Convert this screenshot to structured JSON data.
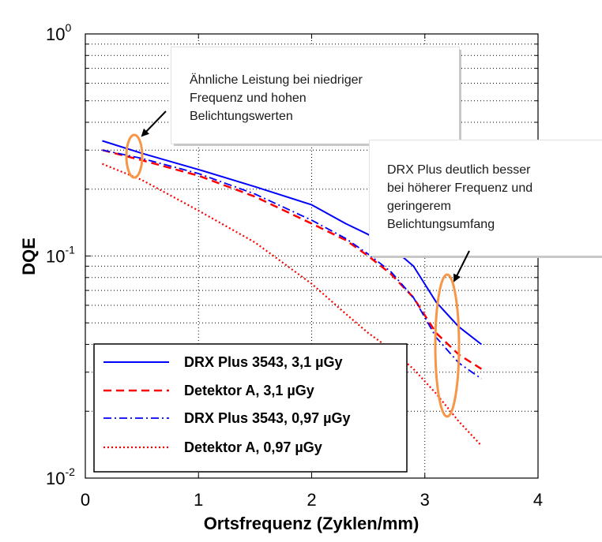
{
  "chart_data": {
    "type": "line",
    "xlabel": "Ortsfrequenz (Zyklen/mm)",
    "ylabel": "DQE",
    "xlim": [
      0,
      4
    ],
    "ylim": [
      0.01,
      1
    ],
    "yscale": "log",
    "xticks": [
      0,
      1,
      2,
      3,
      4
    ],
    "xtick_labels": [
      "0",
      "1",
      "2",
      "3",
      "4"
    ],
    "ytick_labels": [
      {
        "value": 1,
        "base": "10",
        "exp": "0"
      },
      {
        "value": 0.1,
        "base": "10",
        "exp": "-1"
      },
      {
        "value": 0.01,
        "base": "10",
        "exp": "-2"
      }
    ],
    "grid": true,
    "legend_position": "bottom-left",
    "series": [
      {
        "name": "DRX Plus 3543, 3,1 µGy",
        "color": "#0000ff",
        "style": "solid",
        "x": [
          0.15,
          0.5,
          1.0,
          1.5,
          2.0,
          2.3,
          2.5,
          2.7,
          2.9,
          3.1,
          3.3,
          3.5
        ],
        "y": [
          0.33,
          0.29,
          0.245,
          0.205,
          0.17,
          0.14,
          0.125,
          0.11,
          0.09,
          0.062,
          0.048,
          0.04
        ]
      },
      {
        "name": "Detektor A, 3,1 µGy",
        "color": "#ff0000",
        "style": "dashed",
        "x": [
          0.15,
          0.5,
          1.0,
          1.5,
          2.0,
          2.3,
          2.5,
          2.7,
          2.9,
          3.1,
          3.3,
          3.5
        ],
        "y": [
          0.3,
          0.27,
          0.23,
          0.185,
          0.14,
          0.118,
          0.1,
          0.083,
          0.065,
          0.045,
          0.036,
          0.031
        ]
      },
      {
        "name": "DRX Plus 3543, 0,97 µGy",
        "color": "#0000ff",
        "style": "dashdot",
        "x": [
          0.15,
          0.5,
          1.0,
          1.5,
          2.0,
          2.3,
          2.5,
          2.7,
          2.9,
          3.1,
          3.3,
          3.5
        ],
        "y": [
          0.3,
          0.275,
          0.235,
          0.19,
          0.145,
          0.12,
          0.102,
          0.085,
          0.065,
          0.043,
          0.033,
          0.028
        ]
      },
      {
        "name": "Detektor A, 0,97 µGy",
        "color": "#ff0000",
        "style": "dotted",
        "x": [
          0.15,
          0.5,
          1.0,
          1.5,
          2.0,
          2.3,
          2.5,
          2.7,
          2.9,
          3.1,
          3.3,
          3.5
        ],
        "y": [
          0.26,
          0.22,
          0.16,
          0.115,
          0.075,
          0.055,
          0.045,
          0.038,
          0.031,
          0.024,
          0.018,
          0.014
        ]
      }
    ],
    "annotations": [
      {
        "text": "Ähnliche Leistung bei niedriger\nFrequenz und hohen\nBelichtungswerten"
      },
      {
        "text": "DRX Plus deutlich besser\nbei höherer Frequenz und\ngeringerem\nBelichtungsumfang"
      }
    ],
    "highlight_color": "#f79646"
  }
}
